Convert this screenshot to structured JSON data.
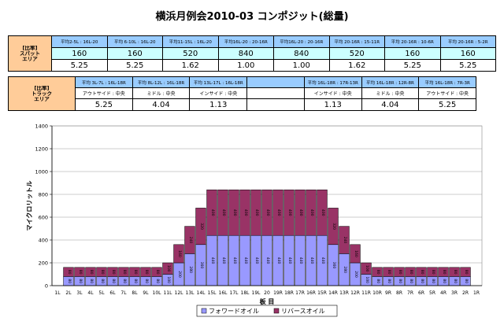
{
  "header": {
    "title": "横浜月例会2010-03 コンポジット(総量)"
  },
  "spot_table": {
    "label": [
      "[比率]",
      "スパット",
      "エリア"
    ],
    "headers": [
      "平均2-5L : 16L-20",
      "平均 6-10L : 16L-20",
      "平均11-15L : 16L-20",
      "平均16L-20 : 20-16R",
      "平均16L-20 : 20-16R",
      "平均 20-16R : 15-11R",
      "平均 20-16R : 10-6R",
      "平均 20-16R : 5-2R"
    ],
    "counts": [
      "160",
      "160",
      "520",
      "840",
      "840",
      "520",
      "160",
      "160"
    ],
    "ratios": [
      "5.25",
      "5.25",
      "1.62",
      "1.00",
      "1.00",
      "1.62",
      "5.25",
      "5.25"
    ]
  },
  "track_table": {
    "label": [
      "[比率]",
      "トラック",
      "エリア"
    ],
    "left": [
      {
        "header": "平均 3L-7L : 16L-18R",
        "position": "アウトサイド : 中央",
        "ratio": "5.25"
      },
      {
        "header": "平均 8L-12L : 16L-18R",
        "position": "ミドル : 中央",
        "ratio": "4.04"
      },
      {
        "header": "平均 13L-17L : 16L-18R",
        "position": "インサイド : 中央",
        "ratio": "1.13"
      }
    ],
    "right": [
      {
        "header": "平均 16L-18R : 17R-13R",
        "position": "インサイド : 中央",
        "ratio": "1.13"
      },
      {
        "header": "平均 16L-18R : 12R-8R",
        "position": "ミドル : 中央",
        "ratio": "4.04"
      },
      {
        "header": "平均 16L-18R : 7R-3R",
        "position": "アウトサイド : 中央",
        "ratio": "5.25"
      }
    ]
  },
  "chart_data": {
    "type": "bar",
    "stacked": true,
    "x_label": "板 目",
    "y_label": "マイクロリットル",
    "categories": [
      "1L",
      "2L",
      "3L",
      "4L",
      "5L",
      "6L",
      "7L",
      "8L",
      "9L",
      "10L",
      "11L",
      "12L",
      "13L",
      "14L",
      "15L",
      "16L",
      "17L",
      "18L",
      "19L",
      "20",
      "19R",
      "18R",
      "17R",
      "16R",
      "15R",
      "14R",
      "13R",
      "12R",
      "11R",
      "10R",
      "9R",
      "8R",
      "7R",
      "6R",
      "5R",
      "4R",
      "3R",
      "2R",
      "1R"
    ],
    "series": [
      {
        "name": "フォワードオイル",
        "color": "#9999ff",
        "values": [
          0,
          80,
          80,
          80,
          80,
          80,
          80,
          80,
          80,
          80,
          100,
          200,
          280,
          360,
          440,
          440,
          440,
          440,
          440,
          440,
          440,
          440,
          440,
          440,
          440,
          360,
          280,
          200,
          100,
          80,
          80,
          80,
          80,
          80,
          80,
          80,
          80,
          80,
          0
        ]
      },
      {
        "name": "リバースオイル",
        "color": "#993366",
        "values": [
          0,
          80,
          80,
          80,
          80,
          80,
          80,
          80,
          80,
          80,
          100,
          160,
          240,
          320,
          400,
          400,
          400,
          400,
          400,
          400,
          400,
          400,
          400,
          400,
          400,
          320,
          240,
          160,
          100,
          80,
          80,
          80,
          80,
          80,
          80,
          80,
          80,
          80,
          0
        ]
      }
    ],
    "ylim": [
      0,
      1400
    ],
    "yticks": [
      0,
      200,
      400,
      600,
      800,
      1000,
      1200,
      1400
    ],
    "grid": true,
    "legend": "bottom"
  }
}
